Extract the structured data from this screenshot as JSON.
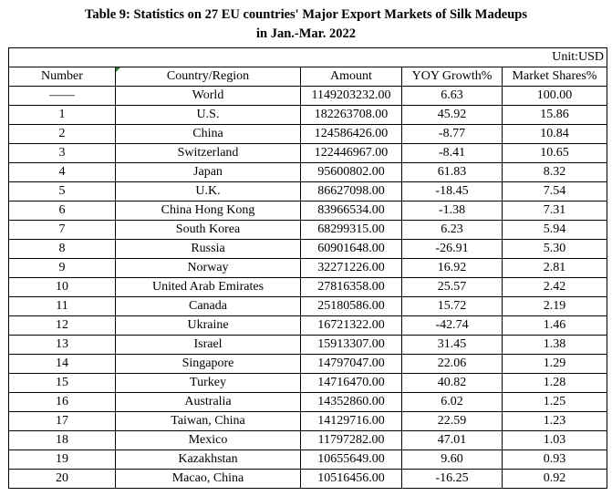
{
  "title": {
    "line1": "Table 9: Statistics on 27 EU countries' Major Export Markets of Silk Madeups",
    "line2": "in Jan.-Mar. 2022"
  },
  "unit": "Unit:USD",
  "headers": [
    "Number",
    "Country/Region",
    "Amount",
    "YOY Growth%",
    "Market Shares%"
  ],
  "rows": [
    [
      "——",
      "World",
      "1149203232.00",
      "6.63",
      "100.00"
    ],
    [
      "1",
      "U.S.",
      "182263708.00",
      "45.92",
      "15.86"
    ],
    [
      "2",
      "China",
      "124586426.00",
      "-8.77",
      "10.84"
    ],
    [
      "3",
      "Switzerland",
      "122446967.00",
      "-8.41",
      "10.65"
    ],
    [
      "4",
      "Japan",
      "95600802.00",
      "61.83",
      "8.32"
    ],
    [
      "5",
      "U.K.",
      "86627098.00",
      "-18.45",
      "7.54"
    ],
    [
      "6",
      "China Hong Kong",
      "83966534.00",
      "-1.38",
      "7.31"
    ],
    [
      "7",
      "South Korea",
      "68299315.00",
      "6.23",
      "5.94"
    ],
    [
      "8",
      "Russia",
      "60901648.00",
      "-26.91",
      "5.30"
    ],
    [
      "9",
      "Norway",
      "32271226.00",
      "16.92",
      "2.81"
    ],
    [
      "10",
      "United Arab Emirates",
      "27816358.00",
      "25.57",
      "2.42"
    ],
    [
      "11",
      "Canada",
      "25180586.00",
      "15.72",
      "2.19"
    ],
    [
      "12",
      "Ukraine",
      "16721322.00",
      "-42.74",
      "1.46"
    ],
    [
      "13",
      "Israel",
      "15913307.00",
      "31.45",
      "1.38"
    ],
    [
      "14",
      "Singapore",
      "14797047.00",
      "22.06",
      "1.29"
    ],
    [
      "15",
      "Turkey",
      "14716470.00",
      "40.82",
      "1.28"
    ],
    [
      "16",
      "Australia",
      "14352860.00",
      "6.02",
      "1.25"
    ],
    [
      "17",
      "Taiwan, China",
      "14129716.00",
      "22.59",
      "1.23"
    ],
    [
      "18",
      "Mexico",
      "11797282.00",
      "47.01",
      "1.03"
    ],
    [
      "19",
      "Kazakhstan",
      "10655649.00",
      "9.60",
      "0.93"
    ],
    [
      "20",
      "Macao, China",
      "10516456.00",
      "-16.25",
      "0.92"
    ]
  ]
}
